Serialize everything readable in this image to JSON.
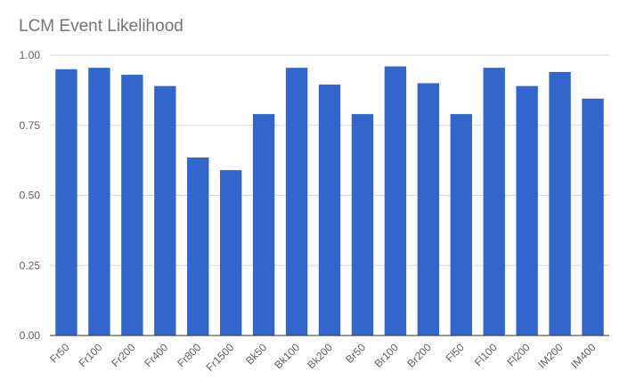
{
  "chart_data": {
    "type": "bar",
    "title": "LCM Event Likelihood",
    "xlabel": "",
    "ylabel": "",
    "categories": [
      "Fr50",
      "Fr100",
      "Fr200",
      "Fr400",
      "Fr800",
      "Fr1500",
      "Bk50",
      "Bk100",
      "Bk200",
      "Br50",
      "Br100",
      "Br200",
      "Fl50",
      "Fl100",
      "Fl200",
      "IM200",
      "IM400"
    ],
    "values": [
      0.95,
      0.955,
      0.93,
      0.89,
      0.635,
      0.59,
      0.79,
      0.955,
      0.895,
      0.79,
      0.96,
      0.9,
      0.79,
      0.955,
      0.89,
      0.94,
      0.845
    ],
    "ylim": [
      0,
      1
    ],
    "yticks": [
      "0.00",
      "0.25",
      "0.50",
      "0.75",
      "1.00"
    ],
    "grid": true,
    "legend": "none",
    "bar_color": "#3366cc"
  }
}
